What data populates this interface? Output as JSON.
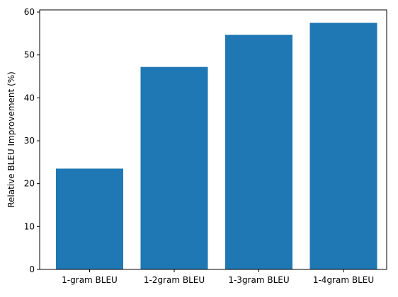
{
  "chart_data": {
    "type": "bar",
    "title": "",
    "xlabel": "",
    "ylabel": "Relative BLEU Improvement (%)",
    "categories": [
      "1-gram BLEU",
      "1-2gram BLEU",
      "1-3gram BLEU",
      "1-4gram BLEU"
    ],
    "values": [
      23.5,
      47.2,
      54.7,
      57.5
    ],
    "ylim": [
      0,
      60.5
    ],
    "yticks": [
      0,
      10,
      20,
      30,
      40,
      50,
      60
    ],
    "bar_color": "#1f77b4",
    "grid": false,
    "legend": "none"
  }
}
